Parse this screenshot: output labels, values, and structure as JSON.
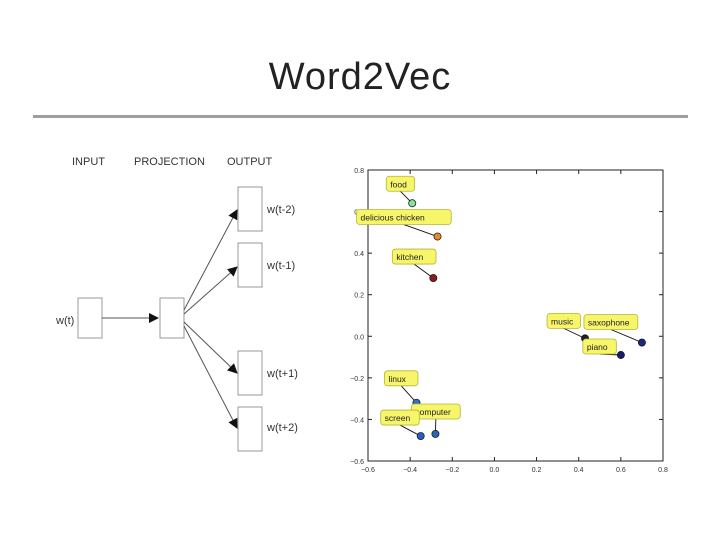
{
  "slide": {
    "title": "Word2Vec"
  },
  "diagram": {
    "headers": {
      "input": "INPUT",
      "projection": "PROJECTION",
      "output": "OUTPUT"
    },
    "input_word": "w(t)",
    "output_words": [
      "w(t-2)",
      "w(t-1)",
      "w(t+1)",
      "w(t+2)"
    ]
  },
  "chart_data": {
    "type": "scatter",
    "title": "",
    "xlabel": "",
    "ylabel": "",
    "xlim": [
      -0.6,
      0.8
    ],
    "ylim": [
      -0.6,
      0.8
    ],
    "x_ticks": [
      "−0.6",
      "−0.4",
      "−0.2",
      "0.0",
      "0.2",
      "0.4",
      "0.6",
      "0.8"
    ],
    "y_ticks": [
      "0.8",
      "0.6",
      "0.4",
      "0.2",
      "0.0",
      "−0.2",
      "−0.4",
      "−0.6"
    ],
    "grid": false,
    "points": [
      {
        "label": "food",
        "x": -0.39,
        "y": 0.64,
        "color": "#7fe39a"
      },
      {
        "label": "delicious chicken",
        "x": -0.27,
        "y": 0.48,
        "color": "#e88a2a"
      },
      {
        "label": "kitchen",
        "x": -0.29,
        "y": 0.28,
        "color": "#8b1a1a"
      },
      {
        "label": "music",
        "x": 0.43,
        "y": -0.01,
        "color": "#1f1f2e"
      },
      {
        "label": "saxophone",
        "x": 0.7,
        "y": -0.03,
        "color": "#1a2a78"
      },
      {
        "label": "piano",
        "x": 0.6,
        "y": -0.09,
        "color": "#141c6b"
      },
      {
        "label": "linux",
        "x": -0.37,
        "y": -0.32,
        "color": "#2f70c8"
      },
      {
        "label": "computer",
        "x": -0.28,
        "y": -0.47,
        "color": "#2a64c0"
      },
      {
        "label": "screen",
        "x": -0.35,
        "y": -0.48,
        "color": "#2b5cc0"
      }
    ]
  }
}
